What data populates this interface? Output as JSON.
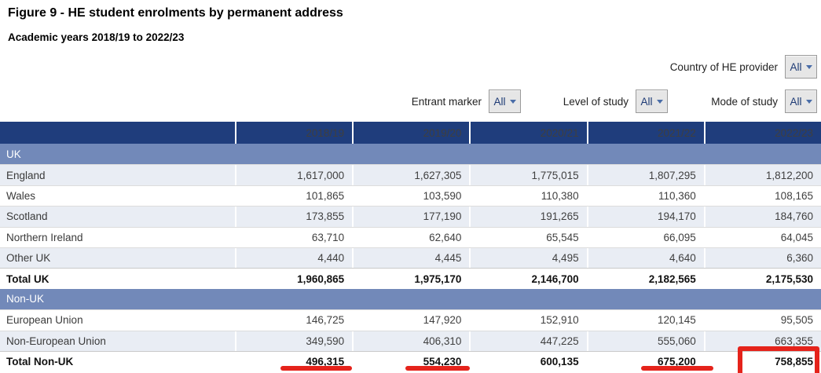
{
  "title": "Figure 9 - HE student enrolments by permanent address",
  "subtitle": "Academic years 2018/19 to 2022/23",
  "filters": {
    "country": {
      "label": "Country of HE provider",
      "value": "All"
    },
    "entrant": {
      "label": "Entrant marker",
      "value": "All"
    },
    "level": {
      "label": "Level of study",
      "value": "All"
    },
    "mode": {
      "label": "Mode of study",
      "value": "All"
    }
  },
  "table": {
    "columns": [
      "",
      "2018/19",
      "2019/20",
      "2020/21",
      "2021/22",
      "2022/23"
    ],
    "rows": [
      {
        "type": "section",
        "label": "UK"
      },
      {
        "type": "data",
        "shade": true,
        "label": "England",
        "values": [
          "1,617,000",
          "1,627,305",
          "1,775,015",
          "1,807,295",
          "1,812,200"
        ]
      },
      {
        "type": "data",
        "shade": false,
        "label": "Wales",
        "values": [
          "101,865",
          "103,590",
          "110,380",
          "110,360",
          "108,165"
        ]
      },
      {
        "type": "data",
        "shade": true,
        "label": "Scotland",
        "values": [
          "173,855",
          "177,190",
          "191,265",
          "194,170",
          "184,760"
        ]
      },
      {
        "type": "data",
        "shade": false,
        "label": "Northern Ireland",
        "values": [
          "63,710",
          "62,640",
          "65,545",
          "66,095",
          "64,045"
        ]
      },
      {
        "type": "data",
        "shade": true,
        "label": "Other UK",
        "values": [
          "4,440",
          "4,445",
          "4,495",
          "4,640",
          "6,360"
        ]
      },
      {
        "type": "total",
        "shade": false,
        "label": "Total UK",
        "values": [
          "1,960,865",
          "1,975,170",
          "2,146,700",
          "2,182,565",
          "2,175,530"
        ]
      },
      {
        "type": "section",
        "label": "Non-UK"
      },
      {
        "type": "data",
        "shade": false,
        "label": "European Union",
        "values": [
          "146,725",
          "147,920",
          "152,910",
          "120,145",
          "95,505"
        ]
      },
      {
        "type": "data",
        "shade": true,
        "label": "Non-European Union",
        "values": [
          "349,590",
          "406,310",
          "447,225",
          "555,060",
          "663,355"
        ]
      },
      {
        "type": "total",
        "shade": false,
        "label": "Total Non-UK",
        "values": [
          "496,315",
          "554,230",
          "600,135",
          "675,200",
          "758,855"
        ]
      }
    ]
  },
  "annotations": {
    "color": "#e5231b",
    "underlined_values": [
      "496,315",
      "554,230",
      "675,200"
    ],
    "boxed_value": "758,855"
  },
  "colors": {
    "header_bg": "#1f3d7c",
    "section_bg": "#7289b9",
    "shade_row_bg": "#e9edf4",
    "annotation_red": "#e5231b"
  }
}
